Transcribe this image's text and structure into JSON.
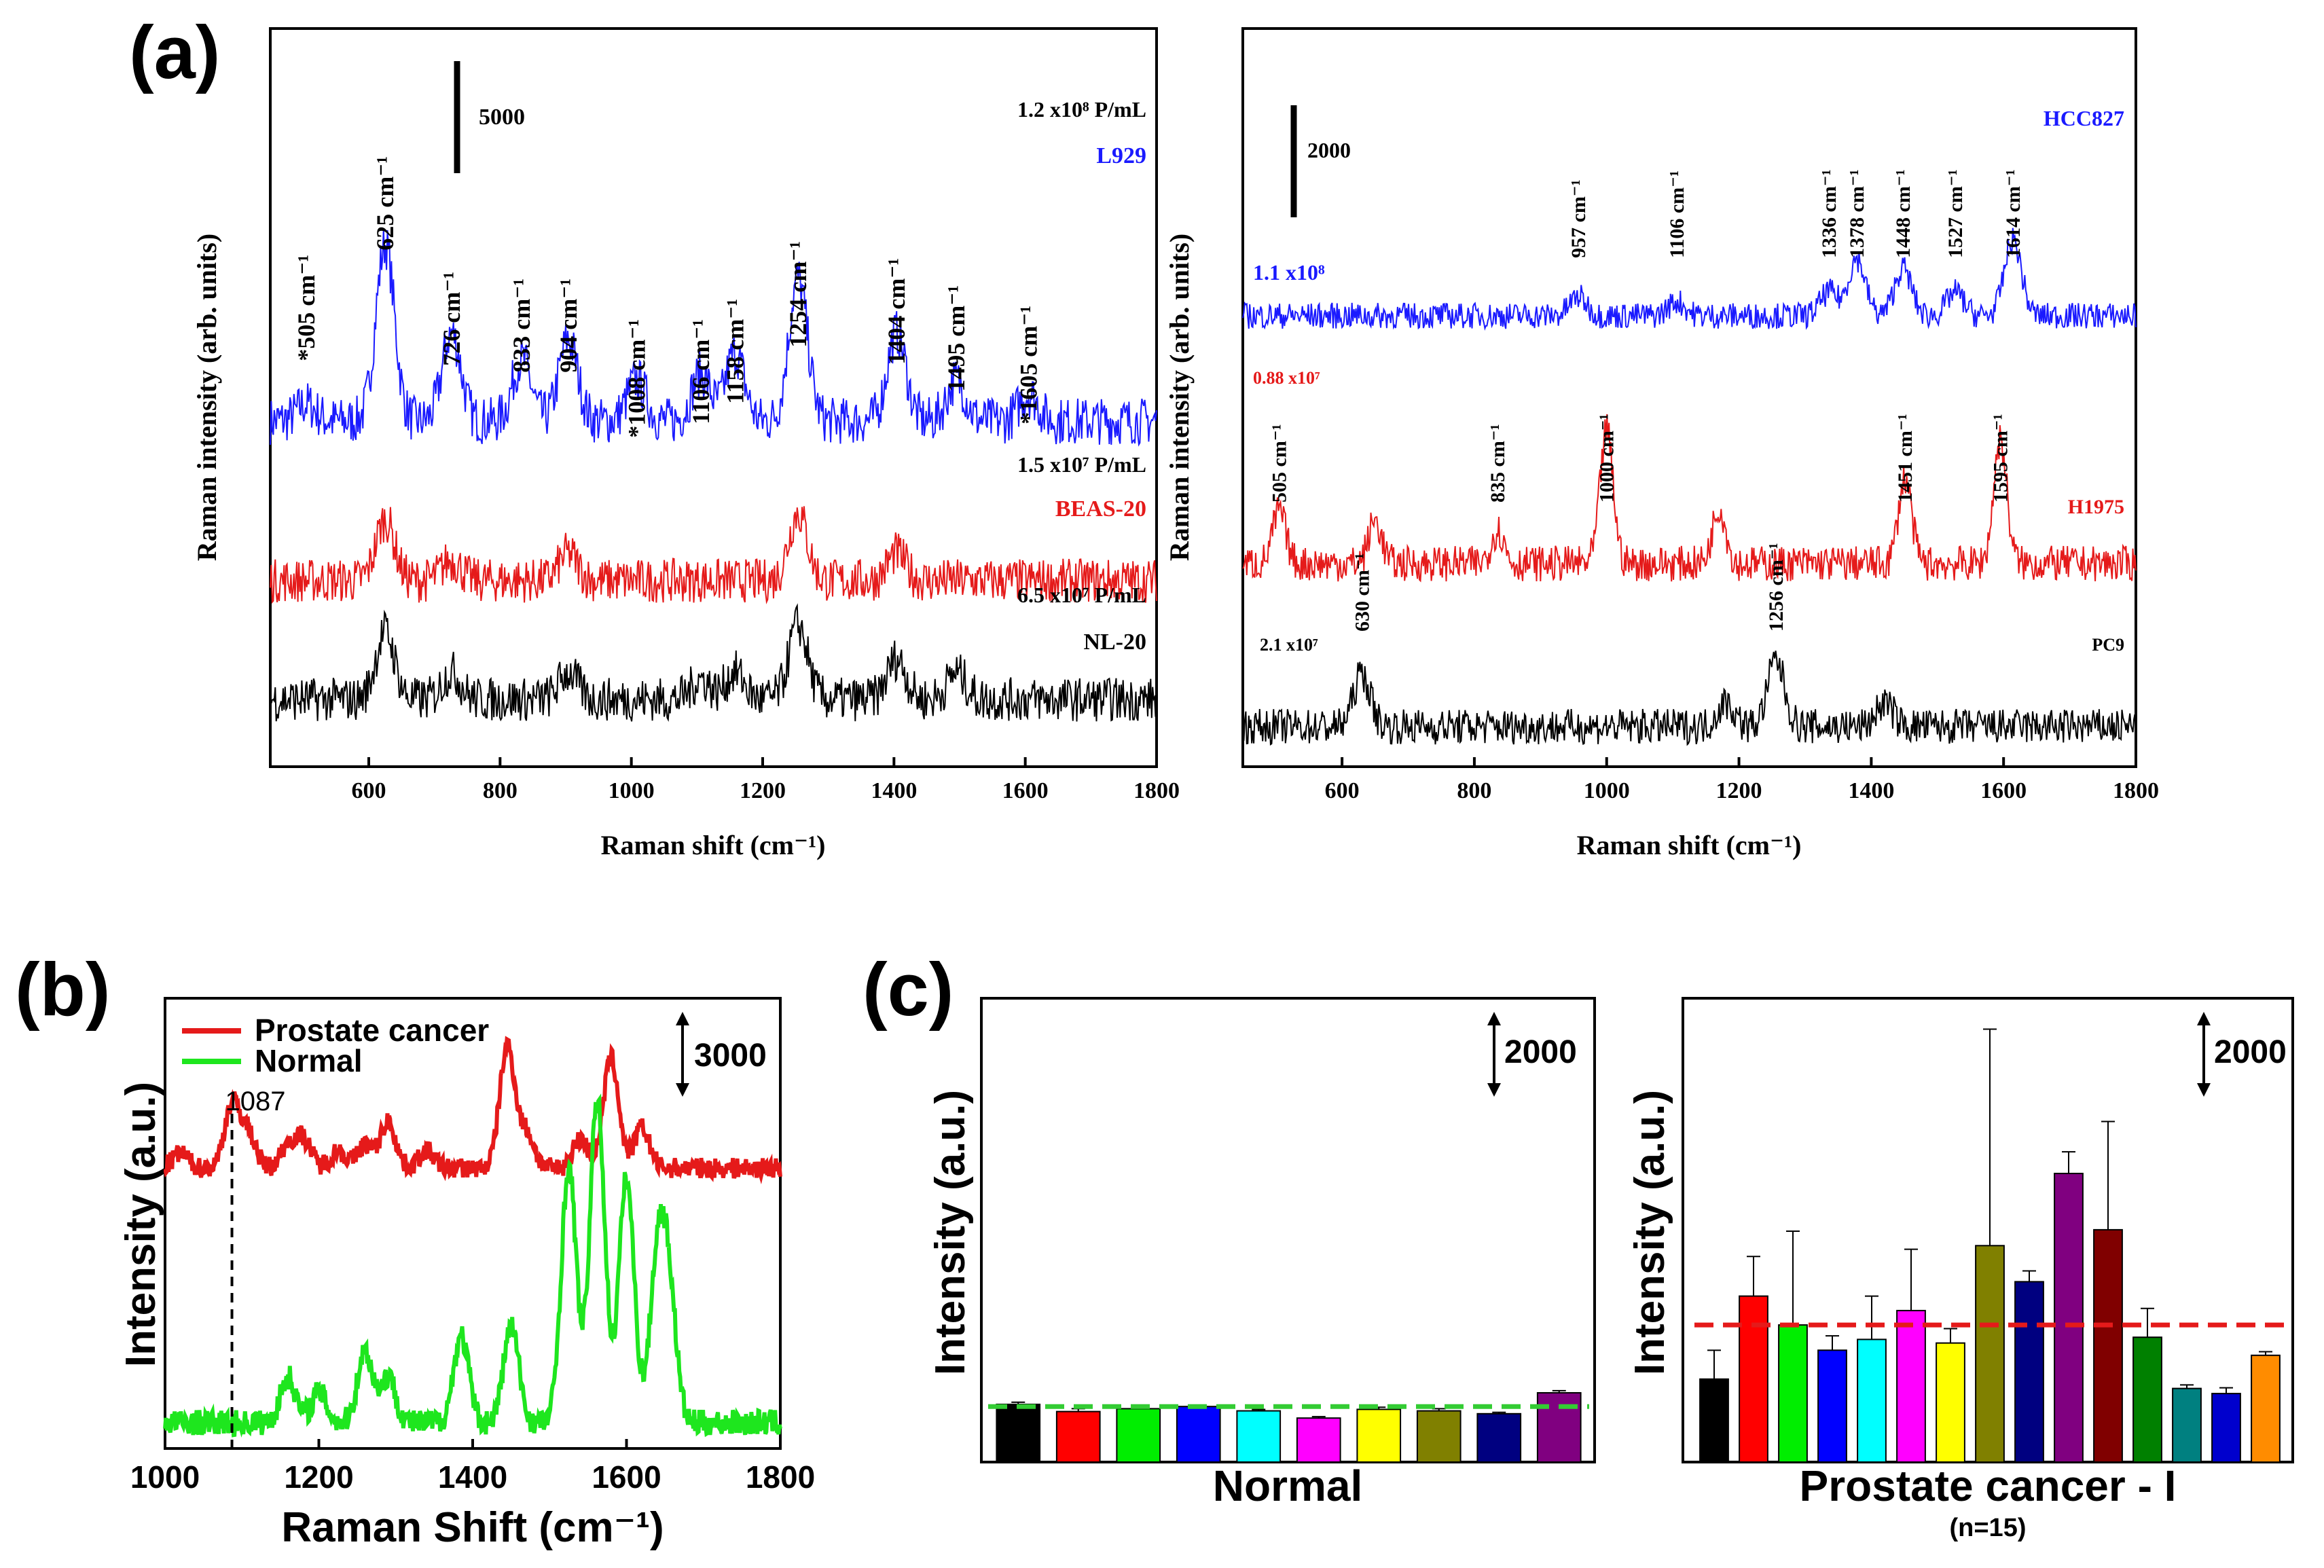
{
  "figure": {
    "panel_a_label": "(a)",
    "panel_b_label": "(b)",
    "panel_c_label": "(c)"
  },
  "chart_data": [
    {
      "id": "a_left",
      "type": "line",
      "xlabel": "Raman shift (cm⁻¹)",
      "ylabel": "Raman intensity (arb. units)",
      "xlim": [
        450,
        1800
      ],
      "xticks": [
        600,
        800,
        1000,
        1200,
        1400,
        1600,
        1800
      ],
      "scale_bar": {
        "value": 5000,
        "label": "5000"
      },
      "peaks": [
        505,
        625,
        726,
        833,
        904,
        1008,
        1106,
        1158,
        1254,
        1404,
        1495,
        1605
      ],
      "peak_labels": [
        "*505 cm⁻¹",
        "625 cm⁻¹",
        "726 cm⁻¹",
        "833 cm⁻¹",
        "904 cm⁻¹",
        "*1008 cm⁻¹",
        "1106 cm⁻¹",
        "1158 cm⁻¹",
        "1254 cm⁻¹",
        "1404 cm⁻¹",
        "1495 cm⁻¹",
        "*1605 cm⁻¹"
      ],
      "series": [
        {
          "name": "L929",
          "concentration": "1.2 x10⁸ P/mL",
          "color": "#1a1aff",
          "peaks": [
            [
              505,
              0.25
            ],
            [
              625,
              2.6
            ],
            [
              726,
              1.3
            ],
            [
              833,
              0.9
            ],
            [
              904,
              1.2
            ],
            [
              1008,
              0.6
            ],
            [
              1106,
              0.7
            ],
            [
              1158,
              1.0
            ],
            [
              1254,
              2.1
            ],
            [
              1404,
              1.3
            ],
            [
              1495,
              0.6
            ],
            [
              1605,
              0.4
            ]
          ]
        },
        {
          "name": "BEAS-20",
          "concentration": "1.5 x10⁷ P/mL",
          "color": "#e51a1a",
          "peaks": [
            [
              625,
              0.9
            ],
            [
              726,
              0.3
            ],
            [
              904,
              0.4
            ],
            [
              1254,
              1.0
            ],
            [
              1404,
              0.4
            ]
          ]
        },
        {
          "name": "NL-20",
          "concentration": "6.5 x10⁷ P/mL",
          "color": "#000000",
          "peaks": [
            [
              625,
              1.0
            ],
            [
              726,
              0.4
            ],
            [
              904,
              0.4
            ],
            [
              1106,
              0.3
            ],
            [
              1158,
              0.4
            ],
            [
              1254,
              1.1
            ],
            [
              1404,
              0.6
            ],
            [
              1495,
              0.4
            ]
          ]
        }
      ]
    },
    {
      "id": "a_right",
      "type": "line",
      "xlabel": "Raman shift (cm⁻¹)",
      "ylabel": "Raman intensity (arb. units)",
      "xlim": [
        450,
        1800
      ],
      "xticks": [
        600,
        800,
        1000,
        1200,
        1400,
        1600,
        1800
      ],
      "scale_bar": {
        "value": 2000,
        "label": "2000"
      },
      "series": [
        {
          "name": "HCC827",
          "concentration": "1.1 x10⁸",
          "color": "#1a1aff",
          "peak_labels": [
            [
              957,
              "957 cm⁻¹"
            ],
            [
              1106,
              "1106 cm⁻¹"
            ],
            [
              1336,
              "1336 cm⁻¹"
            ],
            [
              1378,
              "1378 cm⁻¹"
            ],
            [
              1448,
              "1448 cm⁻¹"
            ],
            [
              1527,
              "1527 cm⁻¹"
            ],
            [
              1614,
              "1614 cm⁻¹"
            ]
          ],
          "peaks": [
            [
              957,
              0.4
            ],
            [
              1106,
              0.3
            ],
            [
              1336,
              0.5
            ],
            [
              1378,
              1.2
            ],
            [
              1448,
              1.0
            ],
            [
              1527,
              0.5
            ],
            [
              1614,
              1.6
            ]
          ]
        },
        {
          "name": "H1975",
          "concentration": "0.88 x10⁷",
          "color": "#e51a1a",
          "peak_labels": [
            [
              505,
              "505 cm⁻¹"
            ],
            [
              835,
              "835 cm⁻¹"
            ],
            [
              1000,
              "1000 cm⁻¹"
            ],
            [
              1451,
              "1451 cm⁻¹"
            ],
            [
              1595,
              "1595 cm⁻¹"
            ]
          ],
          "peaks": [
            [
              505,
              1.1
            ],
            [
              650,
              0.9
            ],
            [
              835,
              0.7
            ],
            [
              1000,
              2.8
            ],
            [
              1170,
              1.2
            ],
            [
              1451,
              1.8
            ],
            [
              1595,
              2.6
            ]
          ]
        },
        {
          "name": "PC9",
          "concentration": "2.1 x10⁷",
          "color": "#000000",
          "peak_labels": [
            [
              630,
              "630 cm⁻¹"
            ],
            [
              1256,
              "1256 cm⁻¹"
            ]
          ],
          "peaks": [
            [
              630,
              1.1
            ],
            [
              1180,
              0.5
            ],
            [
              1256,
              1.4
            ],
            [
              1420,
              0.5
            ]
          ]
        }
      ]
    },
    {
      "id": "b",
      "type": "line",
      "xlabel": "Raman Shift (cm⁻¹)",
      "ylabel": "Intensity (a.u.)",
      "xlim": [
        1000,
        1800
      ],
      "xticks": [
        1000,
        1200,
        1400,
        1600,
        1800
      ],
      "scale_bar": {
        "value": 3000,
        "label": "3000"
      },
      "marker": {
        "x": 1087,
        "label": "1087"
      },
      "series": [
        {
          "name": "Prostate cancer",
          "color": "#e51a1a",
          "peaks": [
            [
              1020,
              0.25
            ],
            [
              1087,
              1.1
            ],
            [
              1108,
              0.6
            ],
            [
              1160,
              0.4
            ],
            [
              1180,
              0.5
            ],
            [
              1225,
              0.3
            ],
            [
              1260,
              0.4
            ],
            [
              1290,
              0.8
            ],
            [
              1340,
              0.3
            ],
            [
              1445,
              2.1
            ],
            [
              1470,
              0.6
            ],
            [
              1540,
              0.5
            ],
            [
              1580,
              1.9
            ],
            [
              1620,
              0.7
            ]
          ]
        },
        {
          "name": "Normal",
          "color": "#1ee61e",
          "peaks": [
            [
              1160,
              0.9
            ],
            [
              1200,
              0.6
            ],
            [
              1260,
              1.4
            ],
            [
              1290,
              0.9
            ],
            [
              1385,
              1.7
            ],
            [
              1450,
              1.9
            ],
            [
              1525,
              5.0
            ],
            [
              1562,
              6.3
            ],
            [
              1600,
              4.8
            ],
            [
              1640,
              3.0
            ],
            [
              1655,
              2.5
            ]
          ]
        }
      ]
    },
    {
      "id": "c_normal",
      "type": "bar",
      "xlabel": "Normal",
      "ylabel": "Intensity (a.u.)",
      "scale_bar": {
        "value": 2000,
        "label": "2000"
      },
      "threshold_line": {
        "value": 770,
        "color": "#33cc33"
      },
      "values": [
        800,
        700,
        740,
        770,
        710,
        610,
        730,
        710,
        670,
        960
      ],
      "errors": [
        30,
        40,
        30,
        20,
        20,
        20,
        30,
        30,
        20,
        30
      ],
      "colors": [
        "#000000",
        "#ff0000",
        "#00ee00",
        "#0000ff",
        "#00ffff",
        "#ff00ff",
        "#ffff00",
        "#808000",
        "#000080",
        "#800080"
      ],
      "ylim": [
        0,
        6400
      ]
    },
    {
      "id": "c_cancer",
      "type": "bar",
      "xlabel": "Prostate  cancer - I",
      "sublabel": "(n=15)",
      "ylabel": "Intensity (a.u.)",
      "scale_bar": {
        "value": 2000,
        "label": "2000"
      },
      "threshold_line": {
        "value": 1900,
        "color": "#e51a1a"
      },
      "values": [
        1150,
        2300,
        1900,
        1550,
        1700,
        2100,
        1650,
        3000,
        2500,
        4000,
        3220,
        1730,
        1020,
        950,
        1480
      ],
      "errors": [
        400,
        550,
        1300,
        200,
        600,
        850,
        200,
        3000,
        150,
        300,
        1500,
        400,
        50,
        80,
        50
      ],
      "colors": [
        "#000000",
        "#ff0000",
        "#00ee00",
        "#0000ff",
        "#00ffff",
        "#ff00ff",
        "#ffff00",
        "#808000",
        "#000080",
        "#800080",
        "#800000",
        "#008000",
        "#008080",
        "#0000cd",
        "#ff8c00"
      ],
      "ylim": [
        0,
        6400
      ]
    }
  ]
}
